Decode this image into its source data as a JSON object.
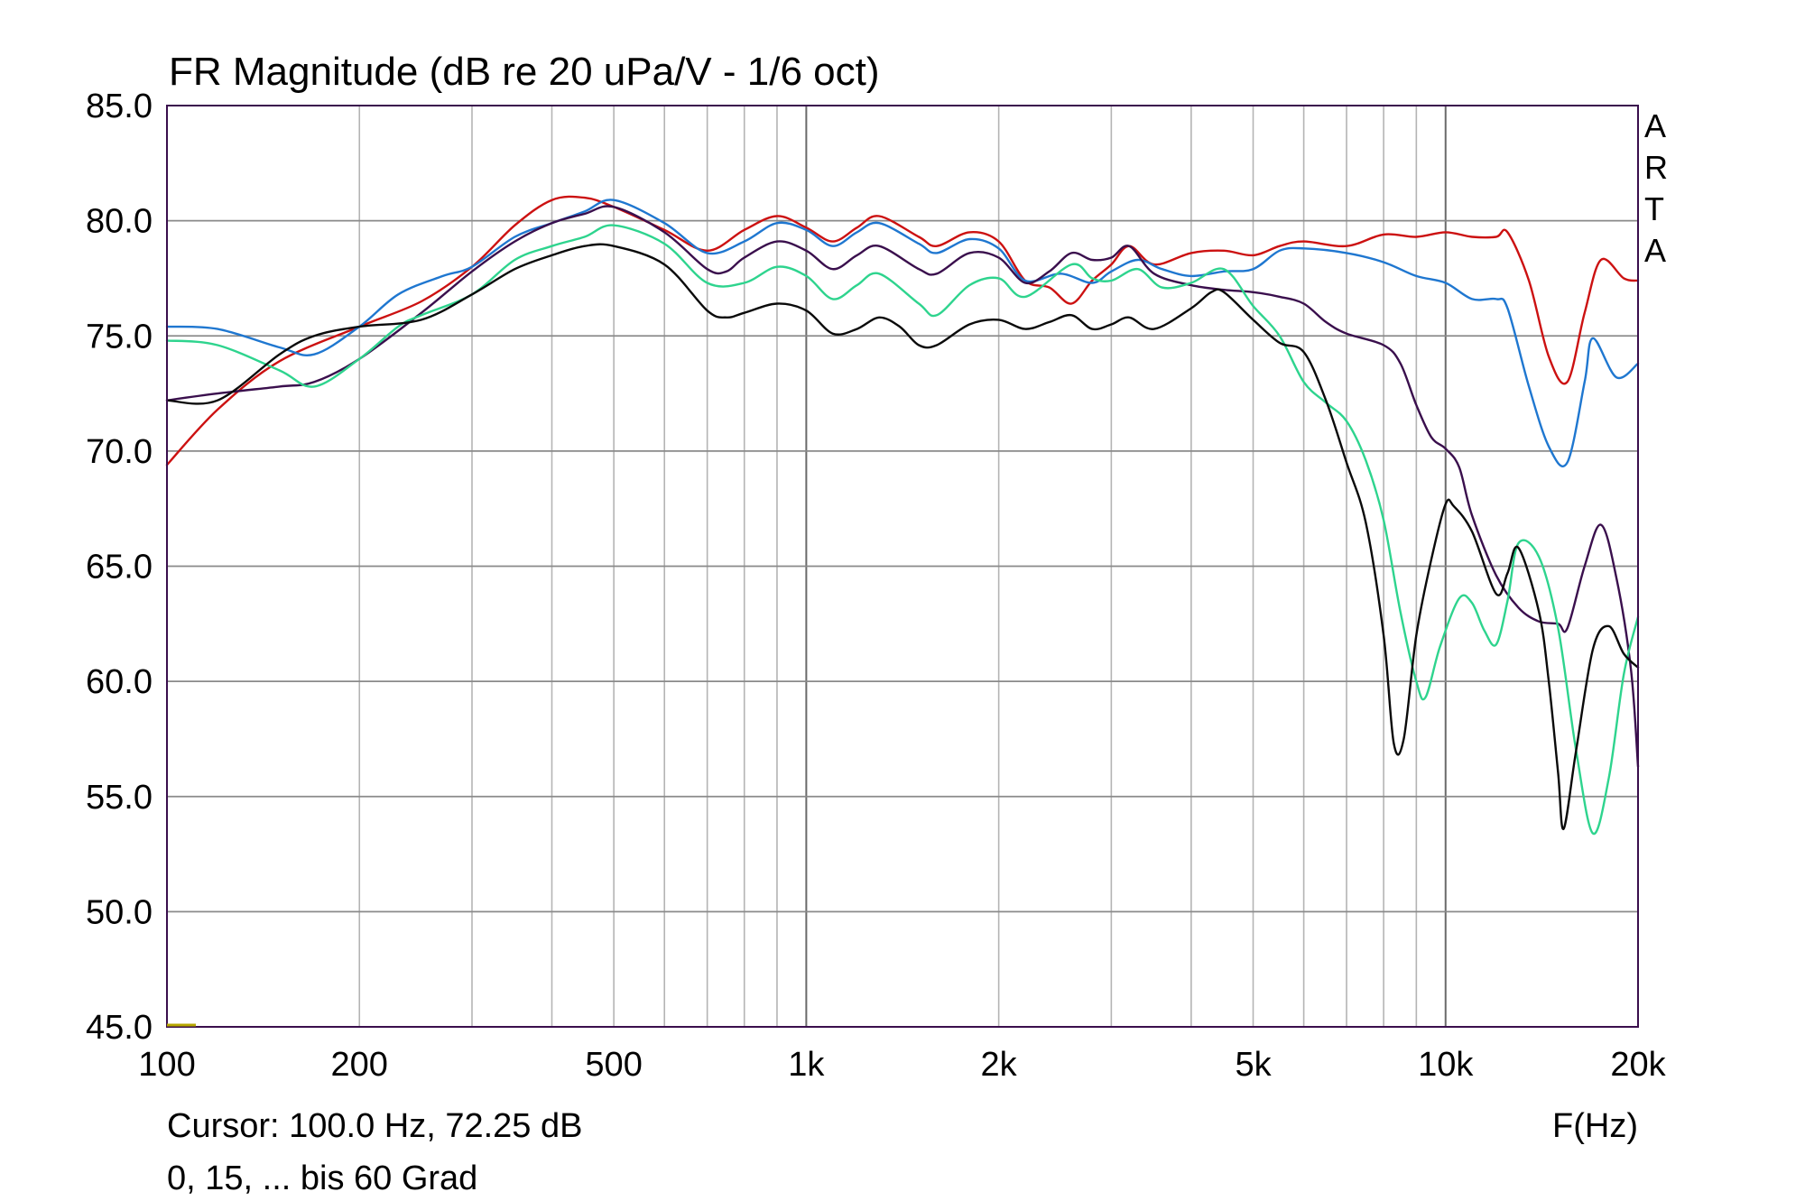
{
  "chart_data": {
    "type": "line",
    "title": "FR Magnitude (dB re 20 uPa/V - 1/6 oct)",
    "xlabel": "F(Hz)",
    "ylabel": "",
    "x_scale": "log",
    "xlim": [
      100,
      20000
    ],
    "ylim": [
      45,
      85
    ],
    "grid": true,
    "y_ticks": [
      "85.0",
      "80.0",
      "75.0",
      "70.0",
      "65.0",
      "60.0",
      "55.0",
      "50.0",
      "45.0"
    ],
    "x_ticks": [
      {
        "value": 100,
        "label": "100"
      },
      {
        "value": 200,
        "label": "200"
      },
      {
        "value": 500,
        "label": "500"
      },
      {
        "value": 1000,
        "label": "1k"
      },
      {
        "value": 2000,
        "label": "2k"
      },
      {
        "value": 5000,
        "label": "5k"
      },
      {
        "value": 10000,
        "label": "10k"
      },
      {
        "value": 20000,
        "label": "20k"
      }
    ],
    "series": [
      {
        "color": "#cc1111",
        "points": [
          [
            100,
            69.4
          ],
          [
            120,
            71.8
          ],
          [
            150,
            73.9
          ],
          [
            200,
            75.4
          ],
          [
            250,
            76.5
          ],
          [
            300,
            78.0
          ],
          [
            350,
            79.8
          ],
          [
            400,
            80.9
          ],
          [
            450,
            81.0
          ],
          [
            500,
            80.6
          ],
          [
            600,
            79.6
          ],
          [
            700,
            78.7
          ],
          [
            800,
            79.6
          ],
          [
            900,
            80.2
          ],
          [
            1000,
            79.7
          ],
          [
            1100,
            79.1
          ],
          [
            1200,
            79.7
          ],
          [
            1300,
            80.2
          ],
          [
            1500,
            79.3
          ],
          [
            1600,
            78.9
          ],
          [
            1800,
            79.5
          ],
          [
            2000,
            79.1
          ],
          [
            2200,
            77.4
          ],
          [
            2400,
            77.1
          ],
          [
            2600,
            76.4
          ],
          [
            2800,
            77.4
          ],
          [
            3000,
            78.1
          ],
          [
            3200,
            78.9
          ],
          [
            3500,
            78.1
          ],
          [
            4000,
            78.6
          ],
          [
            4500,
            78.7
          ],
          [
            5000,
            78.5
          ],
          [
            5500,
            78.9
          ],
          [
            6000,
            79.1
          ],
          [
            7000,
            78.9
          ],
          [
            8000,
            79.4
          ],
          [
            9000,
            79.3
          ],
          [
            10000,
            79.5
          ],
          [
            11000,
            79.3
          ],
          [
            12000,
            79.3
          ],
          [
            12500,
            79.5
          ],
          [
            13500,
            77.4
          ],
          [
            14500,
            74.1
          ],
          [
            15500,
            73.0
          ],
          [
            16500,
            76.0
          ],
          [
            17500,
            78.3
          ],
          [
            19000,
            77.5
          ],
          [
            20000,
            77.4
          ]
        ]
      },
      {
        "color": "#1f77d0",
        "points": [
          [
            100,
            75.4
          ],
          [
            120,
            75.3
          ],
          [
            150,
            74.5
          ],
          [
            170,
            74.2
          ],
          [
            200,
            75.4
          ],
          [
            230,
            76.8
          ],
          [
            270,
            77.6
          ],
          [
            300,
            78.0
          ],
          [
            350,
            79.3
          ],
          [
            400,
            79.9
          ],
          [
            450,
            80.4
          ],
          [
            500,
            80.9
          ],
          [
            600,
            79.9
          ],
          [
            700,
            78.6
          ],
          [
            800,
            79.1
          ],
          [
            900,
            79.9
          ],
          [
            1000,
            79.6
          ],
          [
            1100,
            78.9
          ],
          [
            1200,
            79.5
          ],
          [
            1300,
            79.9
          ],
          [
            1500,
            79.0
          ],
          [
            1600,
            78.6
          ],
          [
            1800,
            79.2
          ],
          [
            2000,
            78.8
          ],
          [
            2200,
            77.4
          ],
          [
            2500,
            77.7
          ],
          [
            2800,
            77.3
          ],
          [
            3000,
            77.8
          ],
          [
            3300,
            78.3
          ],
          [
            3600,
            77.9
          ],
          [
            4000,
            77.6
          ],
          [
            4500,
            77.8
          ],
          [
            5000,
            77.9
          ],
          [
            5500,
            78.7
          ],
          [
            6000,
            78.8
          ],
          [
            7000,
            78.6
          ],
          [
            8000,
            78.2
          ],
          [
            9000,
            77.6
          ],
          [
            10000,
            77.3
          ],
          [
            11000,
            76.6
          ],
          [
            12000,
            76.6
          ],
          [
            12500,
            76.2
          ],
          [
            13500,
            72.8
          ],
          [
            14500,
            70.2
          ],
          [
            15500,
            69.5
          ],
          [
            16500,
            73.0
          ],
          [
            17000,
            74.9
          ],
          [
            18500,
            73.2
          ],
          [
            20000,
            73.8
          ]
        ]
      },
      {
        "color": "#3a0f4d",
        "points": [
          [
            100,
            72.2
          ],
          [
            120,
            72.5
          ],
          [
            150,
            72.8
          ],
          [
            170,
            73.0
          ],
          [
            200,
            74.0
          ],
          [
            250,
            76.0
          ],
          [
            300,
            77.8
          ],
          [
            350,
            79.1
          ],
          [
            400,
            79.9
          ],
          [
            450,
            80.3
          ],
          [
            500,
            80.6
          ],
          [
            600,
            79.5
          ],
          [
            700,
            77.9
          ],
          [
            750,
            77.8
          ],
          [
            800,
            78.4
          ],
          [
            900,
            79.1
          ],
          [
            1000,
            78.7
          ],
          [
            1100,
            77.9
          ],
          [
            1200,
            78.5
          ],
          [
            1300,
            78.9
          ],
          [
            1500,
            77.9
          ],
          [
            1600,
            77.7
          ],
          [
            1800,
            78.6
          ],
          [
            2000,
            78.4
          ],
          [
            2200,
            77.3
          ],
          [
            2400,
            77.8
          ],
          [
            2600,
            78.6
          ],
          [
            2800,
            78.3
          ],
          [
            3000,
            78.4
          ],
          [
            3200,
            78.9
          ],
          [
            3500,
            77.7
          ],
          [
            4000,
            77.2
          ],
          [
            4500,
            77.0
          ],
          [
            5000,
            76.9
          ],
          [
            5500,
            76.7
          ],
          [
            6000,
            76.4
          ],
          [
            6500,
            75.6
          ],
          [
            7000,
            75.1
          ],
          [
            8000,
            74.6
          ],
          [
            8500,
            73.8
          ],
          [
            9000,
            72.0
          ],
          [
            9500,
            70.6
          ],
          [
            10000,
            70.1
          ],
          [
            10500,
            69.3
          ],
          [
            11000,
            67.2
          ],
          [
            12000,
            64.6
          ],
          [
            13000,
            63.2
          ],
          [
            14000,
            62.6
          ],
          [
            15000,
            62.5
          ],
          [
            15500,
            62.3
          ],
          [
            16500,
            65.0
          ],
          [
            17500,
            66.8
          ],
          [
            18500,
            64.5
          ],
          [
            19500,
            60.5
          ],
          [
            20000,
            56.3
          ]
        ]
      },
      {
        "color": "#2ed48e",
        "points": [
          [
            100,
            74.8
          ],
          [
            120,
            74.6
          ],
          [
            150,
            73.5
          ],
          [
            170,
            72.8
          ],
          [
            200,
            74.0
          ],
          [
            230,
            75.4
          ],
          [
            250,
            75.9
          ],
          [
            300,
            76.8
          ],
          [
            350,
            78.3
          ],
          [
            400,
            78.9
          ],
          [
            450,
            79.3
          ],
          [
            500,
            79.8
          ],
          [
            600,
            79.0
          ],
          [
            700,
            77.3
          ],
          [
            800,
            77.3
          ],
          [
            900,
            78.0
          ],
          [
            1000,
            77.6
          ],
          [
            1100,
            76.6
          ],
          [
            1200,
            77.2
          ],
          [
            1300,
            77.7
          ],
          [
            1500,
            76.4
          ],
          [
            1600,
            75.9
          ],
          [
            1800,
            77.2
          ],
          [
            2000,
            77.5
          ],
          [
            2200,
            76.7
          ],
          [
            2600,
            78.1
          ],
          [
            2800,
            77.5
          ],
          [
            3000,
            77.4
          ],
          [
            3300,
            77.9
          ],
          [
            3600,
            77.1
          ],
          [
            4000,
            77.3
          ],
          [
            4500,
            77.9
          ],
          [
            5000,
            76.3
          ],
          [
            5500,
            75.0
          ],
          [
            6000,
            73.0
          ],
          [
            6500,
            72.1
          ],
          [
            7000,
            71.3
          ],
          [
            7500,
            69.6
          ],
          [
            8000,
            67.0
          ],
          [
            8500,
            63.0
          ],
          [
            9000,
            60.0
          ],
          [
            9300,
            59.3
          ],
          [
            9800,
            61.5
          ],
          [
            10500,
            63.6
          ],
          [
            11000,
            63.4
          ],
          [
            11500,
            62.2
          ],
          [
            12000,
            61.6
          ],
          [
            12500,
            63.5
          ],
          [
            13000,
            66.0
          ],
          [
            14000,
            65.4
          ],
          [
            15000,
            62.3
          ],
          [
            16000,
            57.0
          ],
          [
            17000,
            53.4
          ],
          [
            18000,
            55.8
          ],
          [
            19000,
            60.3
          ],
          [
            20000,
            62.8
          ]
        ]
      },
      {
        "color": "#0a0a0a",
        "points": [
          [
            100,
            72.2
          ],
          [
            120,
            72.2
          ],
          [
            150,
            74.2
          ],
          [
            170,
            75.0
          ],
          [
            200,
            75.4
          ],
          [
            250,
            75.7
          ],
          [
            300,
            76.8
          ],
          [
            350,
            77.9
          ],
          [
            400,
            78.5
          ],
          [
            450,
            78.9
          ],
          [
            500,
            78.9
          ],
          [
            600,
            78.1
          ],
          [
            700,
            76.1
          ],
          [
            750,
            75.8
          ],
          [
            800,
            76.0
          ],
          [
            900,
            76.4
          ],
          [
            1000,
            76.1
          ],
          [
            1100,
            75.1
          ],
          [
            1200,
            75.3
          ],
          [
            1300,
            75.8
          ],
          [
            1400,
            75.4
          ],
          [
            1500,
            74.6
          ],
          [
            1600,
            74.6
          ],
          [
            1800,
            75.5
          ],
          [
            2000,
            75.7
          ],
          [
            2200,
            75.3
          ],
          [
            2400,
            75.6
          ],
          [
            2600,
            75.9
          ],
          [
            2800,
            75.3
          ],
          [
            3000,
            75.5
          ],
          [
            3200,
            75.8
          ],
          [
            3500,
            75.3
          ],
          [
            4000,
            76.2
          ],
          [
            4300,
            76.9
          ],
          [
            4500,
            76.9
          ],
          [
            5000,
            75.7
          ],
          [
            5500,
            74.7
          ],
          [
            6000,
            74.3
          ],
          [
            6500,
            72.2
          ],
          [
            7000,
            69.5
          ],
          [
            7500,
            66.9
          ],
          [
            8000,
            62.0
          ],
          [
            8300,
            57.3
          ],
          [
            8600,
            57.5
          ],
          [
            9000,
            62.0
          ],
          [
            9500,
            65.3
          ],
          [
            10000,
            67.7
          ],
          [
            10300,
            67.6
          ],
          [
            11000,
            66.5
          ],
          [
            12000,
            63.8
          ],
          [
            12500,
            64.7
          ],
          [
            13000,
            65.8
          ],
          [
            14000,
            63.0
          ],
          [
            14500,
            60.0
          ],
          [
            15000,
            56.0
          ],
          [
            15300,
            53.6
          ],
          [
            16000,
            57.0
          ],
          [
            17000,
            61.4
          ],
          [
            18000,
            62.4
          ],
          [
            19000,
            61.2
          ],
          [
            20000,
            60.6
          ]
        ]
      }
    ]
  },
  "cursor_text": "Cursor: 100.0 Hz, 72.25 dB",
  "note_text": "0, 15, ... bis 60 Grad",
  "watermark": [
    "A",
    "R",
    "T",
    "A"
  ]
}
